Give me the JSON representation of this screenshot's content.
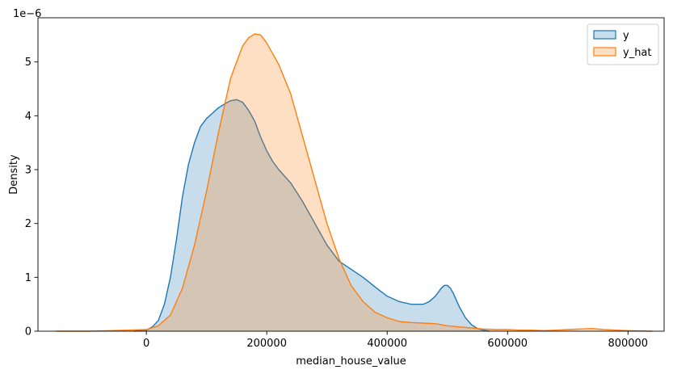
{
  "chart_data": {
    "type": "area",
    "title": "",
    "xlabel": "median_house_value",
    "ylabel": "Density",
    "y_scale_label": "1e−6",
    "y_scale_factor": 1e-06,
    "xlim": [
      -180000,
      860000
    ],
    "ylim": [
      0,
      5.82
    ],
    "x_ticks": [
      0,
      200000,
      400000,
      600000,
      800000
    ],
    "x_tick_labels": [
      "0",
      "200000",
      "400000",
      "600000",
      "800000"
    ],
    "y_ticks": [
      0,
      1,
      2,
      3,
      4,
      5
    ],
    "y_tick_labels": [
      "0",
      "1",
      "2",
      "3",
      "4",
      "5"
    ],
    "grid": false,
    "legend_position": "top-right",
    "series": [
      {
        "name": "y",
        "color": "#1f77b4",
        "fill_alpha": 0.25,
        "x": [
          -20000,
          0,
          10000,
          20000,
          30000,
          40000,
          50000,
          60000,
          70000,
          80000,
          90000,
          100000,
          110000,
          120000,
          130000,
          140000,
          150000,
          160000,
          170000,
          180000,
          190000,
          200000,
          210000,
          220000,
          240000,
          260000,
          280000,
          300000,
          320000,
          340000,
          360000,
          380000,
          400000,
          420000,
          440000,
          460000,
          470000,
          480000,
          490000,
          495000,
          500000,
          505000,
          510000,
          520000,
          530000,
          540000,
          550000,
          560000,
          570000
        ],
        "y": [
          0.0,
          0.02,
          0.08,
          0.2,
          0.5,
          1.0,
          1.7,
          2.5,
          3.1,
          3.5,
          3.8,
          3.95,
          4.05,
          4.15,
          4.22,
          4.28,
          4.3,
          4.25,
          4.1,
          3.9,
          3.6,
          3.35,
          3.15,
          3.0,
          2.75,
          2.4,
          2.0,
          1.6,
          1.3,
          1.15,
          1.0,
          0.82,
          0.65,
          0.55,
          0.5,
          0.5,
          0.55,
          0.65,
          0.8,
          0.85,
          0.85,
          0.8,
          0.7,
          0.45,
          0.25,
          0.12,
          0.05,
          0.02,
          0.0
        ]
      },
      {
        "name": "y_hat",
        "color": "#ff7f0e",
        "fill_alpha": 0.25,
        "x": [
          -150000,
          -100000,
          -60000,
          -30000,
          0,
          20000,
          40000,
          60000,
          80000,
          100000,
          120000,
          140000,
          160000,
          170000,
          180000,
          190000,
          200000,
          220000,
          240000,
          260000,
          280000,
          300000,
          320000,
          340000,
          360000,
          380000,
          400000,
          420000,
          440000,
          460000,
          480000,
          500000,
          520000,
          540000,
          560000,
          580000,
          600000,
          620000,
          640000,
          660000,
          680000,
          700000,
          720000,
          740000,
          760000,
          780000,
          800000,
          840000
        ],
        "y": [
          0.0,
          0.0,
          0.01,
          0.02,
          0.03,
          0.1,
          0.3,
          0.8,
          1.6,
          2.6,
          3.7,
          4.7,
          5.3,
          5.45,
          5.52,
          5.5,
          5.35,
          4.95,
          4.4,
          3.6,
          2.8,
          2.0,
          1.35,
          0.85,
          0.55,
          0.35,
          0.25,
          0.18,
          0.16,
          0.15,
          0.14,
          0.1,
          0.08,
          0.06,
          0.04,
          0.03,
          0.03,
          0.02,
          0.02,
          0.01,
          0.02,
          0.03,
          0.04,
          0.05,
          0.03,
          0.02,
          0.01,
          0.0
        ]
      }
    ]
  }
}
